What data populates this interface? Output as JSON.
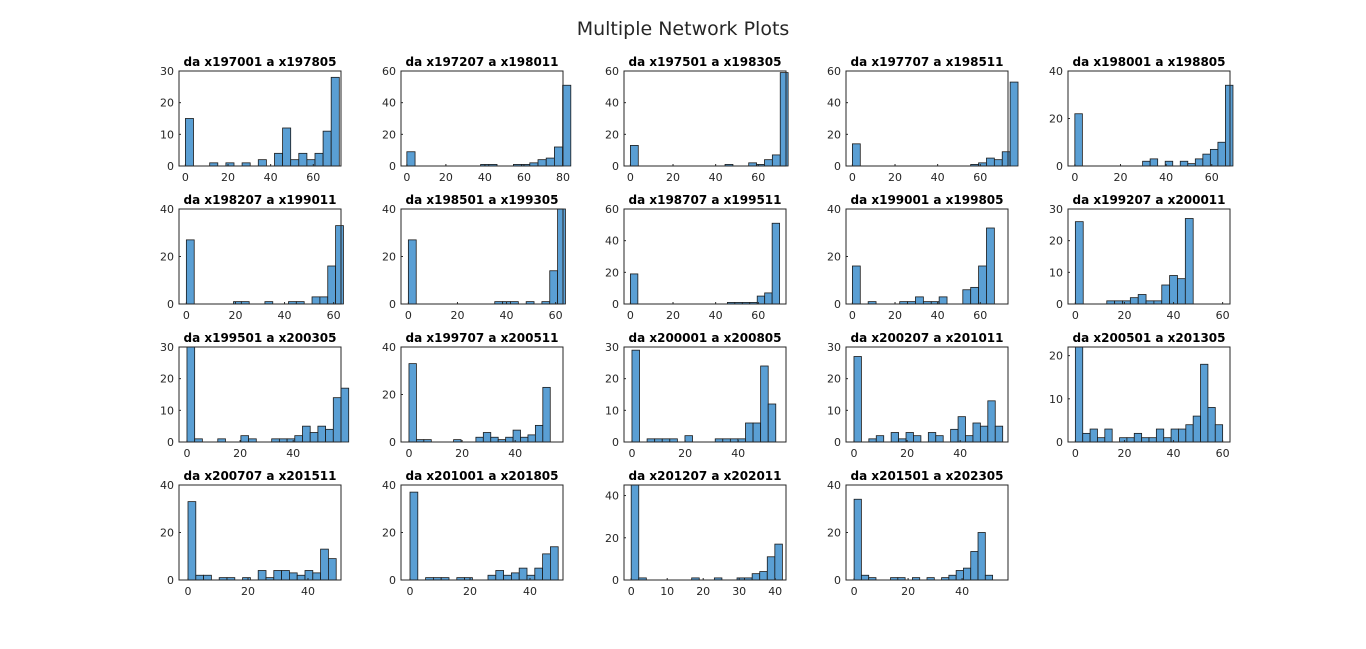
{
  "figure": {
    "title": "Multiple Network Plots"
  },
  "colors": {
    "bar_fill": "#5a9fd4",
    "bar_edge": "#1a1a1a",
    "axis": "#262626"
  },
  "chart_data": [
    {
      "type": "bar",
      "title": "da x197001 a x197805",
      "binwidth": 3.8,
      "xlim": [
        -3,
        73
      ],
      "ylim": [
        0,
        30
      ],
      "xticks": [
        0,
        20,
        40,
        60
      ],
      "yticks": [
        0,
        10,
        20,
        30
      ],
      "values": [
        15,
        0,
        0,
        1,
        0,
        1,
        0,
        1,
        0,
        2,
        0,
        4,
        12,
        2,
        4,
        2,
        4,
        11,
        28
      ]
    },
    {
      "type": "bar",
      "title": "da x197207 a x198011",
      "binwidth": 4.2,
      "xlim": [
        -3,
        80
      ],
      "ylim": [
        0,
        60
      ],
      "xticks": [
        0,
        20,
        40,
        60,
        80
      ],
      "yticks": [
        0,
        20,
        40,
        60
      ],
      "values": [
        9,
        0,
        0,
        0,
        0,
        0,
        0,
        0,
        0,
        1,
        1,
        0,
        0,
        1,
        1,
        2,
        4,
        5,
        12,
        51
      ]
    },
    {
      "type": "bar",
      "title": "da x197501 a x198305",
      "binwidth": 3.7,
      "xlim": [
        -3,
        73
      ],
      "ylim": [
        0,
        60
      ],
      "xticks": [
        0,
        20,
        40,
        60
      ],
      "yticks": [
        0,
        20,
        40,
        60
      ],
      "values": [
        13,
        0,
        0,
        0,
        0,
        0,
        0,
        0,
        0,
        0,
        0,
        0,
        1,
        0,
        0,
        2,
        1,
        4,
        7,
        59
      ]
    },
    {
      "type": "bar",
      "title": "da x197707 a x198511",
      "binwidth": 3.7,
      "xlim": [
        -3,
        73
      ],
      "ylim": [
        0,
        60
      ],
      "xticks": [
        0,
        20,
        40,
        60
      ],
      "yticks": [
        0,
        20,
        40,
        60
      ],
      "values": [
        14,
        0,
        0,
        0,
        0,
        0,
        0,
        0,
        0,
        0,
        0,
        0,
        0,
        0,
        0,
        1,
        2,
        5,
        4,
        9,
        53
      ]
    },
    {
      "type": "bar",
      "title": "da x198001 a x198805",
      "binwidth": 3.3,
      "xlim": [
        -3,
        68
      ],
      "ylim": [
        0,
        40
      ],
      "xticks": [
        0,
        20,
        40,
        60
      ],
      "yticks": [
        0,
        20,
        40
      ],
      "values": [
        22,
        0,
        0,
        0,
        0,
        0,
        0,
        0,
        0,
        2,
        3,
        0,
        2,
        0,
        2,
        1,
        3,
        5,
        7,
        10,
        34
      ]
    },
    {
      "type": "bar",
      "title": "da x198207 a x199011",
      "binwidth": 3.2,
      "xlim": [
        -3,
        63
      ],
      "ylim": [
        0,
        40
      ],
      "xticks": [
        0,
        20,
        40,
        60
      ],
      "yticks": [
        0,
        20,
        40
      ],
      "values": [
        27,
        0,
        0,
        0,
        0,
        0,
        1,
        1,
        0,
        0,
        1,
        0,
        0,
        1,
        1,
        0,
        3,
        3,
        16,
        33
      ]
    },
    {
      "type": "bar",
      "title": "da x198501 a x199305",
      "binwidth": 3.2,
      "xlim": [
        -3,
        63
      ],
      "ylim": [
        0,
        40
      ],
      "xticks": [
        0,
        20,
        40,
        60
      ],
      "yticks": [
        0,
        20,
        40
      ],
      "values": [
        27,
        0,
        0,
        0,
        0,
        0,
        0,
        0,
        0,
        0,
        0,
        1,
        1,
        1,
        0,
        1,
        0,
        1,
        14,
        41
      ]
    },
    {
      "type": "bar",
      "title": "da x198707 a x199511",
      "binwidth": 3.5,
      "xlim": [
        -3,
        73
      ],
      "ylim": [
        0,
        60
      ],
      "xticks": [
        0,
        20,
        40,
        60
      ],
      "yticks": [
        0,
        20,
        40,
        60
      ],
      "values": [
        19,
        0,
        0,
        0,
        0,
        0,
        0,
        0,
        0,
        0,
        0,
        0,
        0,
        1,
        1,
        1,
        1,
        5,
        7,
        51
      ]
    },
    {
      "type": "bar",
      "title": "da x199001 a x199805",
      "binwidth": 3.7,
      "xlim": [
        -3,
        73
      ],
      "ylim": [
        0,
        40
      ],
      "xticks": [
        0,
        20,
        40,
        60
      ],
      "yticks": [
        0,
        20,
        40
      ],
      "values": [
        16,
        0,
        1,
        0,
        0,
        0,
        1,
        1,
        3,
        1,
        1,
        3,
        0,
        0,
        6,
        7,
        16,
        32
      ]
    },
    {
      "type": "bar",
      "title": "da x199207 a x200011",
      "binwidth": 3.2,
      "xlim": [
        -3,
        63
      ],
      "ylim": [
        0,
        30
      ],
      "xticks": [
        0,
        20,
        40,
        60
      ],
      "yticks": [
        0,
        10,
        20,
        30
      ],
      "values": [
        26,
        0,
        0,
        0,
        1,
        1,
        1,
        2,
        3,
        1,
        1,
        6,
        9,
        8,
        27
      ]
    },
    {
      "type": "bar",
      "title": "da x199501 a x200305",
      "binwidth": 2.9,
      "xlim": [
        -3,
        58
      ],
      "ylim": [
        0,
        30
      ],
      "xticks": [
        0,
        20,
        40
      ],
      "yticks": [
        0,
        10,
        20,
        30
      ],
      "values": [
        30,
        1,
        0,
        0,
        1,
        0,
        0,
        2,
        1,
        0,
        0,
        1,
        1,
        1,
        2,
        5,
        3,
        5,
        4,
        14,
        17
      ]
    },
    {
      "type": "bar",
      "title": "da x199707 a x200511",
      "binwidth": 2.8,
      "xlim": [
        -3,
        58
      ],
      "ylim": [
        0,
        40
      ],
      "xticks": [
        0,
        20,
        40
      ],
      "yticks": [
        0,
        20,
        40
      ],
      "values": [
        33,
        1,
        1,
        0,
        0,
        0,
        1,
        0,
        0,
        2,
        4,
        2,
        1,
        2,
        5,
        2,
        3,
        7,
        23
      ]
    },
    {
      "type": "bar",
      "title": "da x200001 a x200805",
      "binwidth": 2.85,
      "xlim": [
        -3,
        58
      ],
      "ylim": [
        0,
        30
      ],
      "xticks": [
        0,
        20,
        40
      ],
      "yticks": [
        0,
        10,
        20,
        30
      ],
      "values": [
        29,
        0,
        1,
        1,
        1,
        1,
        0,
        2,
        0,
        0,
        0,
        1,
        1,
        1,
        1,
        6,
        6,
        24,
        12
      ]
    },
    {
      "type": "bar",
      "title": "da x200207 a x201011",
      "binwidth": 2.8,
      "xlim": [
        -3,
        58
      ],
      "ylim": [
        0,
        30
      ],
      "xticks": [
        0,
        20,
        40
      ],
      "yticks": [
        0,
        10,
        20,
        30
      ],
      "values": [
        27,
        0,
        1,
        2,
        0,
        3,
        1,
        3,
        2,
        0,
        3,
        2,
        0,
        4,
        8,
        2,
        6,
        5,
        13,
        5
      ]
    },
    {
      "type": "bar",
      "title": "da x200501 a x201305",
      "binwidth": 3.0,
      "xlim": [
        -3,
        63
      ],
      "ylim": [
        0,
        22
      ],
      "xticks": [
        0,
        20,
        40,
        60
      ],
      "yticks": [
        0,
        10,
        20
      ],
      "values": [
        22,
        2,
        3,
        1,
        3,
        0,
        1,
        1,
        2,
        1,
        1,
        3,
        1,
        3,
        3,
        4,
        6,
        18,
        8,
        4
      ]
    },
    {
      "type": "bar",
      "title": "da x200707 a x201511",
      "binwidth": 2.6,
      "xlim": [
        -3,
        51
      ],
      "ylim": [
        0,
        40
      ],
      "xticks": [
        0,
        20,
        40
      ],
      "yticks": [
        0,
        20,
        40
      ],
      "values": [
        33,
        2,
        2,
        0,
        1,
        1,
        0,
        1,
        0,
        4,
        1,
        4,
        4,
        3,
        2,
        4,
        3,
        13,
        9
      ]
    },
    {
      "type": "bar",
      "title": "da x201001 a x201805",
      "binwidth": 2.6,
      "xlim": [
        -3,
        51
      ],
      "ylim": [
        0,
        40
      ],
      "xticks": [
        0,
        20,
        40
      ],
      "yticks": [
        0,
        20,
        40
      ],
      "values": [
        37,
        0,
        1,
        1,
        1,
        0,
        1,
        1,
        0,
        0,
        2,
        4,
        2,
        3,
        5,
        2,
        5,
        11,
        14
      ]
    },
    {
      "type": "bar",
      "title": "da x201207 a x202011",
      "binwidth": 2.1,
      "xlim": [
        -2,
        43
      ],
      "ylim": [
        0,
        45
      ],
      "xticks": [
        0,
        10,
        20,
        30,
        40
      ],
      "yticks": [
        0,
        20,
        40
      ],
      "values": [
        45,
        1,
        0,
        0,
        0,
        0,
        0,
        0,
        1,
        0,
        0,
        1,
        0,
        0,
        1,
        1,
        3,
        4,
        11,
        17
      ]
    },
    {
      "type": "bar",
      "title": "da x201501 a x202305",
      "binwidth": 2.7,
      "xlim": [
        -3,
        57
      ],
      "ylim": [
        0,
        40
      ],
      "xticks": [
        0,
        20,
        40
      ],
      "yticks": [
        0,
        20,
        40
      ],
      "values": [
        34,
        2,
        1,
        0,
        0,
        1,
        1,
        0,
        1,
        0,
        1,
        0,
        1,
        2,
        4,
        5,
        12,
        20,
        2
      ]
    }
  ]
}
